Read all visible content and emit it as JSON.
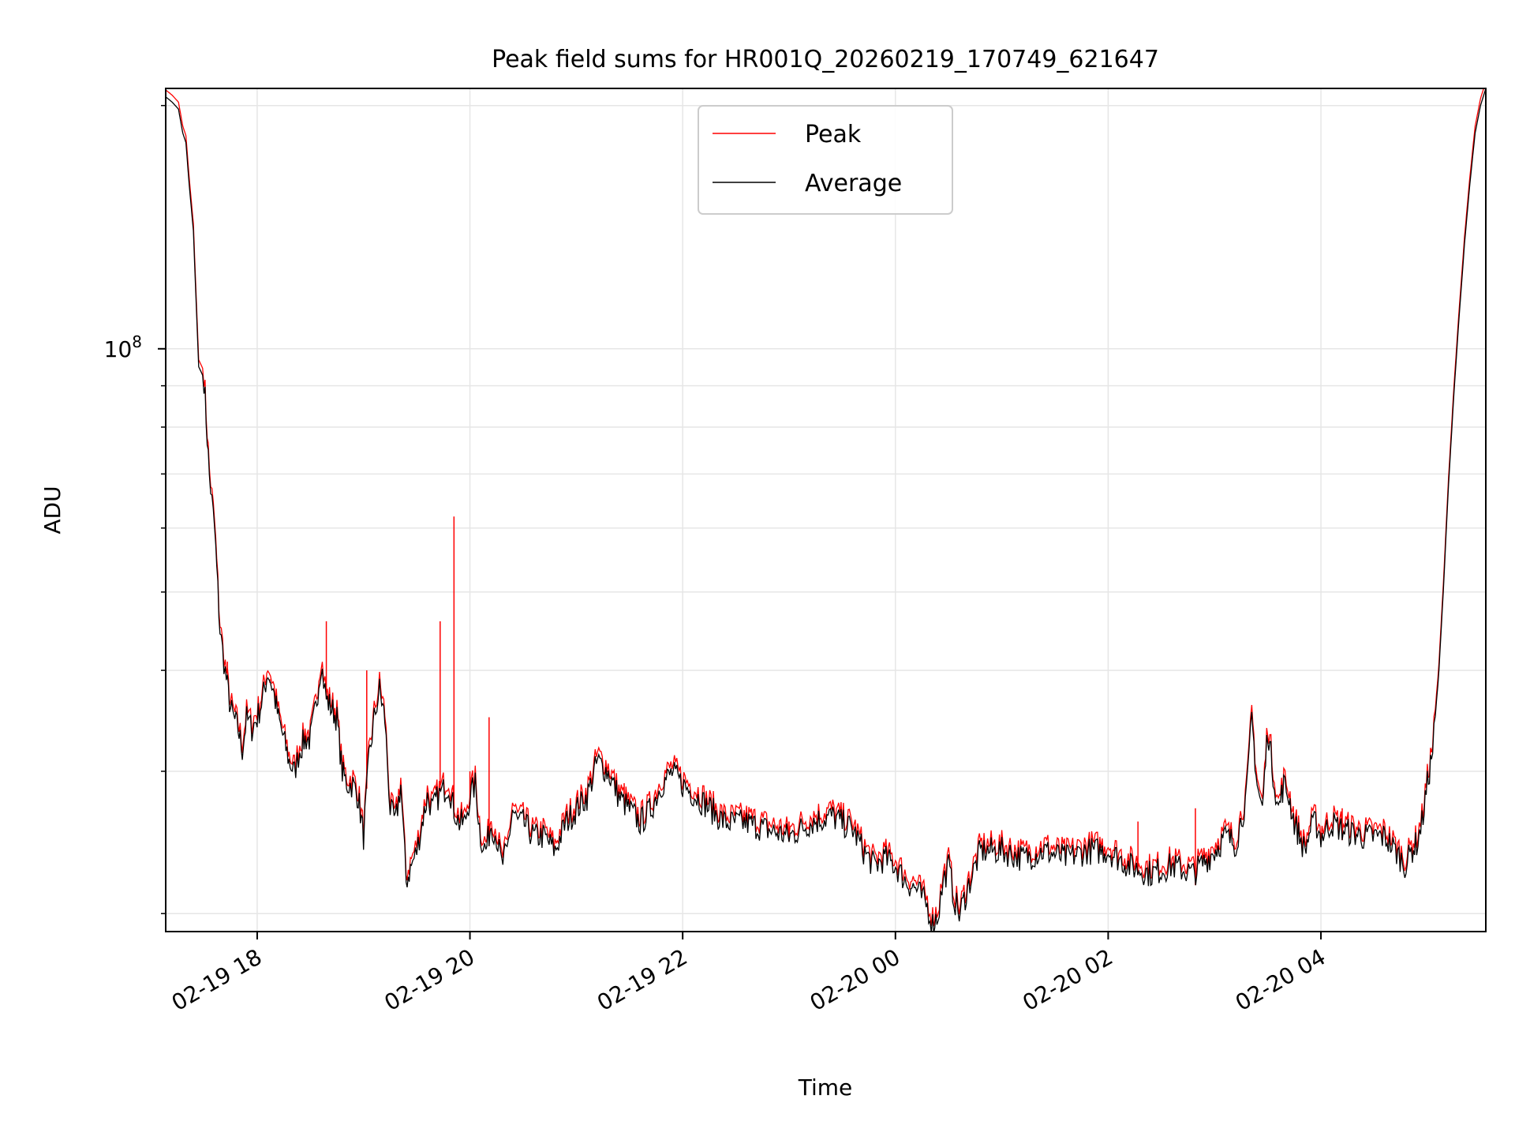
{
  "chart_data": {
    "type": "line",
    "title": "Peak field sums for HR001Q_20260219_170749_621647",
    "xlabel": "Time",
    "ylabel": "ADU",
    "yscale": "log",
    "grid": true,
    "legend": {
      "location": "upper center",
      "entries": [
        "Peak",
        "Average"
      ]
    },
    "colors": {
      "Peak": "#ff0000",
      "Average": "#000000",
      "grid": "#e6e6e6"
    },
    "x_unit": "hours since 2026-02-19 17:00",
    "xlim": [
      0.14,
      12.55
    ],
    "ylim": [
      19000000,
      210000000
    ],
    "x_ticks": [
      {
        "value": 1,
        "label": "02-19 18"
      },
      {
        "value": 3,
        "label": "02-19 20"
      },
      {
        "value": 5,
        "label": "02-19 22"
      },
      {
        "value": 7,
        "label": "02-20 00"
      },
      {
        "value": 9,
        "label": "02-20 02"
      },
      {
        "value": 11,
        "label": "02-20 04"
      }
    ],
    "y_major_ticks": [
      {
        "value": 100000000,
        "base": "10",
        "exp": "8"
      }
    ],
    "y_minor_ticks": [
      20000000,
      30000000,
      40000000,
      50000000,
      60000000,
      70000000,
      80000000,
      90000000,
      200000000
    ],
    "series": [
      {
        "name": "Average",
        "x": [
          0.14,
          0.2,
          0.26,
          0.3,
          0.33,
          0.36,
          0.4,
          0.45,
          0.5,
          0.55,
          0.6,
          0.65,
          0.7,
          0.75,
          0.78,
          0.82,
          0.86,
          0.9,
          0.95,
          1.0,
          1.05,
          1.1,
          1.15,
          1.2,
          1.25,
          1.3,
          1.35,
          1.4,
          1.45,
          1.5,
          1.55,
          1.6,
          1.65,
          1.7,
          1.75,
          1.8,
          1.85,
          1.9,
          1.95,
          2.0,
          2.05,
          2.1,
          2.15,
          2.2,
          2.25,
          2.3,
          2.35,
          2.4,
          2.45,
          2.5,
          2.55,
          2.6,
          2.65,
          2.7,
          2.75,
          2.8,
          2.85,
          2.9,
          2.95,
          3.0,
          3.05,
          3.1,
          3.15,
          3.2,
          3.25,
          3.3,
          3.35,
          3.4,
          3.45,
          3.5,
          3.6,
          3.7,
          3.8,
          3.9,
          4.0,
          4.1,
          4.2,
          4.3,
          4.4,
          4.5,
          4.6,
          4.7,
          4.8,
          4.9,
          5.0,
          5.2,
          5.4,
          5.6,
          5.8,
          6.0,
          6.2,
          6.4,
          6.6,
          6.7,
          6.8,
          6.9,
          7.0,
          7.1,
          7.2,
          7.3,
          7.35,
          7.4,
          7.45,
          7.5,
          7.55,
          7.6,
          7.7,
          7.8,
          7.9,
          8.0,
          8.2,
          8.4,
          8.6,
          8.8,
          9.0,
          9.2,
          9.4,
          9.6,
          9.8,
          10.0,
          10.1,
          10.2,
          10.3,
          10.35,
          10.4,
          10.45,
          10.5,
          10.55,
          10.6,
          10.65,
          10.7,
          10.75,
          10.8,
          10.85,
          10.9,
          10.95,
          11.0,
          11.1,
          11.2,
          11.4,
          11.6,
          11.7,
          11.8,
          11.85,
          11.9,
          11.95,
          12.0,
          12.05,
          12.1,
          12.15,
          12.2,
          12.25,
          12.3,
          12.35,
          12.4,
          12.45,
          12.5,
          12.55
        ],
        "y": [
          205000000,
          202000000,
          198000000,
          185000000,
          180000000,
          160000000,
          140000000,
          95000000,
          92000000,
          70000000,
          60000000,
          45000000,
          40000000,
          36000000,
          35000000,
          34000000,
          32000000,
          35000000,
          34000000,
          35000000,
          37000000,
          40000000,
          38000000,
          35000000,
          33000000,
          31000000,
          30000000,
          32000000,
          33000000,
          33000000,
          36000000,
          41000000,
          37000000,
          36000000,
          35000000,
          30000000,
          29000000,
          29000000,
          28000000,
          25000000,
          31000000,
          35000000,
          38000000,
          35000000,
          27000000,
          26000000,
          29000000,
          22000000,
          23000000,
          24000000,
          26000000,
          28000000,
          27000000,
          28000000,
          28500000,
          29000000,
          27000000,
          26000000,
          26000000,
          28000000,
          29000000,
          25000000,
          24000000,
          26000000,
          25000000,
          23000000,
          24000000,
          27000000,
          26000000,
          26000000,
          25000000,
          25000000,
          24000000,
          26000000,
          27000000,
          28000000,
          31000000,
          30000000,
          28000000,
          27000000,
          26000000,
          27000000,
          29000000,
          30000000,
          29000000,
          27500000,
          26000000,
          26000000,
          25500000,
          25000000,
          26000000,
          26500000,
          25500000,
          24000000,
          23000000,
          23500000,
          23000000,
          22000000,
          21500000,
          20500000,
          19500000,
          20000000,
          22000000,
          23000000,
          21000000,
          20000000,
          22000000,
          24000000,
          24000000,
          24000000,
          23500000,
          24000000,
          23500000,
          24000000,
          24000000,
          23000000,
          22500000,
          23000000,
          22500000,
          24000000,
          25000000,
          24500000,
          28000000,
          35000000,
          29000000,
          27000000,
          34000000,
          30000000,
          27000000,
          29000000,
          28000000,
          26000000,
          25000000,
          24000000,
          25500000,
          26000000,
          25000000,
          26000000,
          25500000,
          25000000,
          25000000,
          24000000,
          23000000,
          24000000,
          24500000,
          26000000,
          29000000,
          32000000,
          38000000,
          50000000,
          68000000,
          88000000,
          110000000,
          135000000,
          160000000,
          185000000,
          200000000,
          210000000
        ]
      },
      {
        "name": "Peak",
        "spikes": [
          {
            "x": 0.72,
            "y": 41000000
          },
          {
            "x": 1.12,
            "y": 39000000
          },
          {
            "x": 1.65,
            "y": 46000000
          },
          {
            "x": 2.03,
            "y": 40000000
          },
          {
            "x": 2.72,
            "y": 46000000
          },
          {
            "x": 2.85,
            "y": 62000000
          },
          {
            "x": 3.0,
            "y": 30000000
          },
          {
            "x": 3.18,
            "y": 35000000
          },
          {
            "x": 4.45,
            "y": 29000000
          },
          {
            "x": 6.0,
            "y": 26000000
          },
          {
            "x": 9.28,
            "y": 26000000
          },
          {
            "x": 9.82,
            "y": 27000000
          },
          {
            "x": 10.72,
            "y": 27000000
          },
          {
            "x": 11.2,
            "y": 27000000
          }
        ]
      }
    ]
  }
}
